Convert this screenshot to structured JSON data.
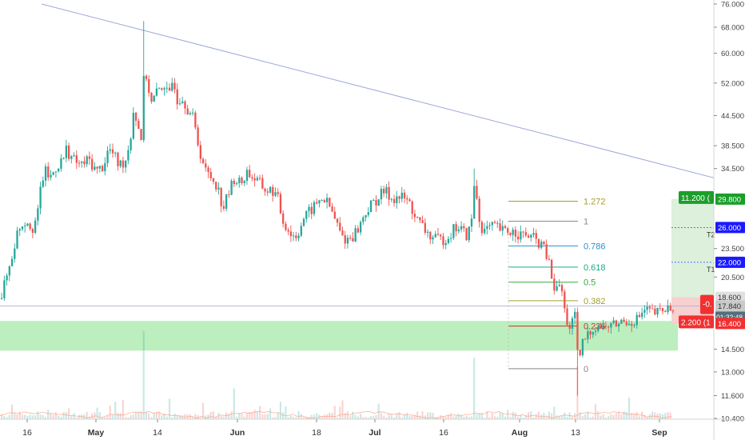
{
  "colors": {
    "up": "#26a69a",
    "down": "#ef5350",
    "trendline": "#9fa8da",
    "zone": "#a5e8a8",
    "target_zone": "#dcf0dc",
    "stop_zone": "#f7d0d0",
    "target_badge": "#1b9e2a",
    "stop_badge": "#f23030",
    "level_badge": "#1a1aff",
    "fib_1272": "#a5a02e",
    "fib_1": "#888888",
    "fib_0786": "#2a8fc9",
    "fib_0618": "#1fa88a",
    "fib_05": "#3aa83a",
    "fib_0382": "#a5a02e",
    "fib_0236": "#c0392b",
    "fib_0": "#888888"
  },
  "chart_data": {
    "type": "candlestick",
    "x_axis_labels": [
      "16",
      "May",
      "14",
      "Jun",
      "18",
      "Jul",
      "16",
      "Aug",
      "13",
      "Sep"
    ],
    "y_axis_labels": [
      "76.000",
      "68.000",
      "60.000",
      "52.000",
      "44.500",
      "38.500",
      "34.500",
      "29.800",
      "26.000",
      "23.500",
      "22.000",
      "20.500",
      "18.600",
      "17.840",
      "01:32:48",
      "16.400",
      "14.500",
      "13.000",
      "11.600",
      "10.400"
    ],
    "y_scale": "log",
    "grid": false,
    "ohlc_path": [
      [
        0,
        18.5
      ],
      [
        12,
        22
      ],
      [
        22,
        26
      ],
      [
        32,
        27
      ],
      [
        40,
        26
      ],
      [
        47,
        28
      ],
      [
        50,
        32
      ],
      [
        55,
        34
      ],
      [
        62,
        33
      ],
      [
        70,
        35
      ],
      [
        78,
        36
      ],
      [
        82,
        38
      ],
      [
        90,
        36
      ],
      [
        100,
        35
      ],
      [
        110,
        36
      ],
      [
        120,
        34
      ],
      [
        128,
        35
      ],
      [
        135,
        38
      ],
      [
        140,
        37
      ],
      [
        148,
        35
      ],
      [
        156,
        36
      ],
      [
        162,
        40
      ],
      [
        166,
        46
      ],
      [
        172,
        42
      ],
      [
        176,
        40
      ],
      [
        178,
        52
      ],
      [
        182,
        54
      ],
      [
        188,
        47
      ],
      [
        196,
        50
      ],
      [
        204,
        52
      ],
      [
        210,
        48
      ],
      [
        216,
        54
      ],
      [
        220,
        48
      ],
      [
        226,
        49
      ],
      [
        234,
        46
      ],
      [
        240,
        44
      ],
      [
        248,
        38
      ],
      [
        256,
        34
      ],
      [
        264,
        33
      ],
      [
        270,
        32
      ],
      [
        278,
        28.5
      ],
      [
        286,
        31
      ],
      [
        292,
        33
      ],
      [
        300,
        32
      ],
      [
        308,
        34
      ],
      [
        316,
        33
      ],
      [
        324,
        32
      ],
      [
        332,
        31
      ],
      [
        340,
        31
      ],
      [
        346,
        30
      ],
      [
        352,
        27
      ],
      [
        358,
        26
      ],
      [
        364,
        25
      ],
      [
        370,
        25
      ],
      [
        378,
        27
      ],
      [
        386,
        28
      ],
      [
        394,
        29
      ],
      [
        402,
        30
      ],
      [
        410,
        29
      ],
      [
        418,
        27
      ],
      [
        426,
        25
      ],
      [
        432,
        24.5
      ],
      [
        440,
        25
      ],
      [
        448,
        26
      ],
      [
        456,
        28
      ],
      [
        464,
        29
      ],
      [
        472,
        30
      ],
      [
        480,
        31
      ],
      [
        488,
        30
      ],
      [
        496,
        30
      ],
      [
        504,
        30
      ],
      [
        512,
        29
      ],
      [
        520,
        27
      ],
      [
        528,
        26
      ],
      [
        536,
        25
      ],
      [
        544,
        24.5
      ],
      [
        552,
        24.5
      ],
      [
        560,
        25
      ],
      [
        568,
        26
      ],
      [
        574,
        26
      ],
      [
        582,
        25
      ],
      [
        588,
        26
      ],
      [
        593,
        33
      ],
      [
        598,
        27
      ],
      [
        604,
        25.5
      ],
      [
        612,
        26
      ],
      [
        620,
        26
      ],
      [
        628,
        25.5
      ],
      [
        636,
        25.5
      ],
      [
        644,
        25.5
      ],
      [
        652,
        25
      ],
      [
        660,
        25
      ],
      [
        668,
        24.5
      ],
      [
        676,
        24
      ],
      [
        684,
        22.5
      ],
      [
        690,
        20
      ],
      [
        694,
        19
      ],
      [
        700,
        20
      ],
      [
        706,
        17
      ],
      [
        712,
        16
      ],
      [
        718,
        17
      ],
      [
        722,
        13.5
      ],
      [
        728,
        15
      ],
      [
        734,
        15.5
      ],
      [
        740,
        16
      ],
      [
        746,
        16.3
      ],
      [
        752,
        16
      ],
      [
        760,
        16.2
      ],
      [
        768,
        16.3
      ],
      [
        776,
        16.5
      ],
      [
        784,
        16.6
      ],
      [
        792,
        16.6
      ],
      [
        800,
        17
      ],
      [
        806,
        17.5
      ],
      [
        814,
        17.3
      ],
      [
        820,
        17.2
      ],
      [
        826,
        17.4
      ],
      [
        834,
        17.6
      ],
      [
        840,
        17.8
      ]
    ],
    "price_spikes": [
      [
        178,
        70
      ],
      [
        593,
        34.5
      ],
      [
        722,
        11.6
      ]
    ],
    "trendline": {
      "from": [
        52,
        76.0
      ],
      "to": [
        893,
        33.0
      ]
    },
    "horizontal_line": 17.84,
    "demand_zone": [
      14.4,
      16.6
    ],
    "fibonacci": [
      {
        "label": "1.272",
        "price": 29.5,
        "color_key": "fib_1272"
      },
      {
        "label": "1",
        "price": 26.8,
        "color_key": "fib_1"
      },
      {
        "label": "0.786",
        "price": 23.8,
        "color_key": "fib_0786"
      },
      {
        "label": "0.618",
        "price": 21.5,
        "color_key": "fib_0618"
      },
      {
        "label": "0.5",
        "price": 20.0,
        "color_key": "fib_05"
      },
      {
        "label": "0.382",
        "price": 18.3,
        "color_key": "fib_0382"
      },
      {
        "label": "0.236",
        "price": 16.2,
        "color_key": "fib_0236"
      },
      {
        "label": "0",
        "price": 13.2,
        "color_key": "fib_0"
      }
    ],
    "position": {
      "entry": 18.6,
      "stop": 16.4,
      "target_top": 29.8,
      "t1": 22.0,
      "t2": 26.0,
      "t1_label": "T1",
      "t2_label": "T2",
      "target_badge": "11.200 (",
      "stop_badge": "2.200 (1",
      "entry_badge": "-0."
    },
    "volume": {
      "bars": 260,
      "spikes": [
        [
          178,
          1.0
        ],
        [
          593,
          0.7
        ],
        [
          722,
          0.6
        ],
        [
          292,
          0.35
        ]
      ]
    }
  }
}
